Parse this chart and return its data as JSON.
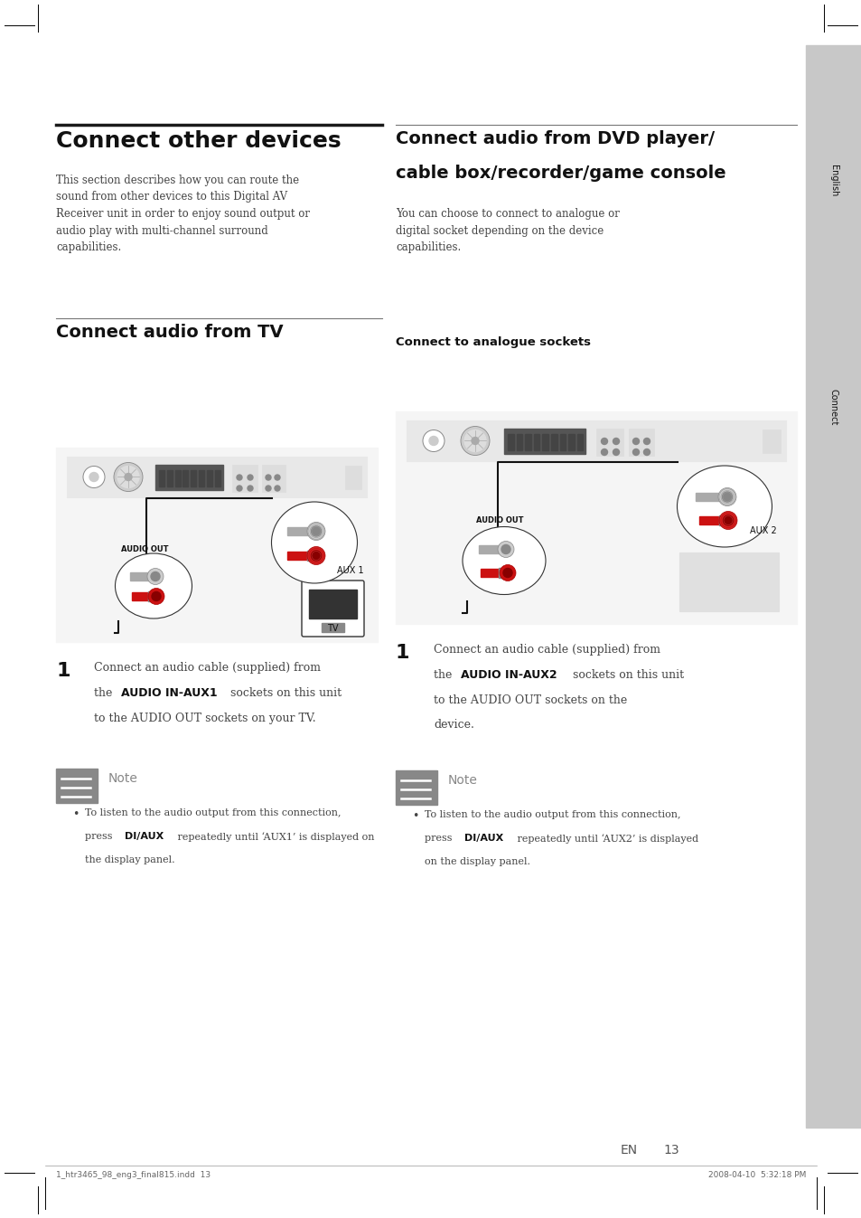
{
  "page_width": 9.54,
  "page_height": 13.47,
  "bg_color": "#ffffff",
  "sidebar_bg": "#c8c8c8",
  "sidebar_text_bg": "#aaaaaa",
  "note_icon_bg": "#888888",
  "note_border": "#bbbbbb",
  "diagram_bg": "#f5f5f5",
  "diagram_border": "#777777",
  "receiver_bg": "#e0e0e0",
  "receiver_border": "#888888",
  "red_connector": "#cc1111",
  "dark_connector": "#444444",
  "title_main": "Connect other devices",
  "body_text_left": "This section describes how you can route the\nsound from other devices to this Digital AV\nReceiver unit in order to enjoy sound output or\naudio play with multi-channel surround\ncapabilities.",
  "section_tv_title": "Connect audio from TV",
  "section_dvd_title_line1": "Connect audio from DVD player/",
  "section_dvd_title_line2": "cable box/recorder/game console",
  "dvd_body_text": "You can choose to connect to analogue or\ndigital socket depending on the device\ncapabilities.",
  "analogue_subtitle": "Connect to analogue sockets",
  "step1_left_line1": "Connect an audio cable (supplied) from",
  "step1_left_line2_pre": "the ",
  "step1_left_line2_bold": "AUDIO IN-AUX1",
  "step1_left_line2_post": " sockets on this unit",
  "step1_left_line3": "to the AUDIO OUT sockets on your TV.",
  "step1_right_line1": "Connect an audio cable (supplied) from",
  "step1_right_line2_pre": "the ",
  "step1_right_line2_bold": "AUDIO IN-AUX2",
  "step1_right_line2_post": " sockets on this unit",
  "step1_right_line3": "to the AUDIO OUT sockets on the",
  "step1_right_line4": "device.",
  "note_left_line1": "To listen to the audio output from this connection,",
  "note_left_line2_pre": "press ",
  "note_left_line2_bold": "DI/AUX",
  "note_left_line2_post": " repeatedly until ‘AUX1’ is displayed on",
  "note_left_line3": "the display panel.",
  "note_right_line1": "To listen to the audio output from this connection,",
  "note_right_line2_pre": "press ",
  "note_right_line2_bold": "DI/AUX",
  "note_right_line2_post": " repeatedly until ‘AUX2’ is displayed",
  "note_right_line3": "on the display panel.",
  "footer_en": "EN",
  "footer_page": "13",
  "footer_left_text": "1_htr3465_98_eng3_final815.indd  13",
  "footer_right_text": "2008-04-10  5:32:18 PM",
  "sidebar_text_english": "English",
  "sidebar_text_connect": "Connect"
}
